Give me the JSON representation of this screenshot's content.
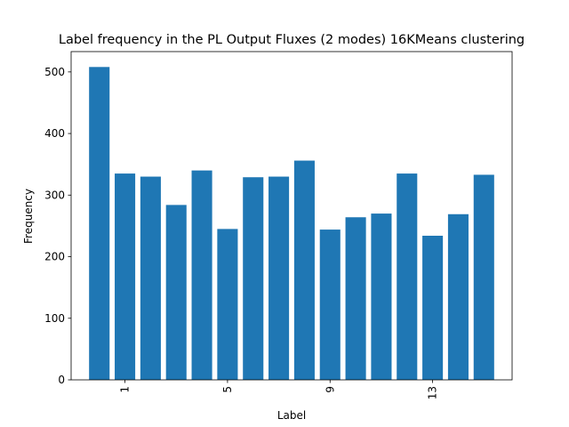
{
  "chart_data": {
    "type": "bar",
    "title": "Label frequency in the PL Output Fluxes (2 modes) 16KMeans clustering",
    "xlabel": "Label",
    "ylabel": "Frequency",
    "categories": [
      "0",
      "1",
      "2",
      "3",
      "4",
      "5",
      "6",
      "7",
      "8",
      "9",
      "10",
      "11",
      "12",
      "13",
      "14",
      "15"
    ],
    "values": [
      508,
      335,
      330,
      284,
      340,
      245,
      329,
      330,
      356,
      244,
      264,
      270,
      335,
      234,
      269,
      333
    ],
    "x_ticks": [
      {
        "value": 1,
        "label": "1"
      },
      {
        "value": 5,
        "label": "5"
      },
      {
        "value": 9,
        "label": "9"
      },
      {
        "value": 13,
        "label": "13"
      }
    ],
    "x_tick_rotation": 90,
    "y_ticks": [
      0,
      100,
      200,
      300,
      400,
      500
    ],
    "ylim": [
      0,
      533
    ],
    "xlim": [
      -1.1,
      16.1
    ],
    "grid": false,
    "legend": "none",
    "colors": {
      "bar": "#1f77b4",
      "axis": "#000000"
    }
  }
}
